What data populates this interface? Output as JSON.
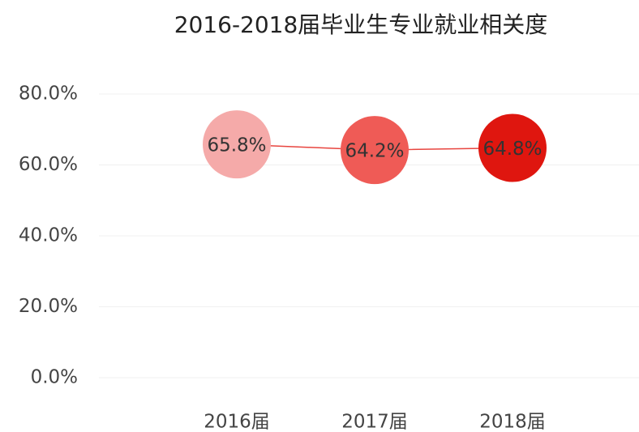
{
  "chart_data": {
    "type": "line",
    "title": "2016-2018届毕业生专业就业相关度",
    "categories": [
      "2016届",
      "2017届",
      "2018届"
    ],
    "series": [
      {
        "values": [
          65.8,
          64.2,
          64.8
        ],
        "value_labels": [
          "65.8%",
          "64.2%",
          "64.8%"
        ],
        "color": "#e8453f",
        "point_colors": [
          "#f5aaa9",
          "#ef5b56",
          "#df160f"
        ]
      }
    ],
    "ylim": [
      0,
      80
    ],
    "yticks": [
      {
        "value": 0,
        "label": "0.0%"
      },
      {
        "value": 20,
        "label": "20.0%"
      },
      {
        "value": 40,
        "label": "40.0%"
      },
      {
        "value": 60,
        "label": "60.0%"
      },
      {
        "value": 80,
        "label": "80.0%"
      }
    ],
    "grid": true
  }
}
